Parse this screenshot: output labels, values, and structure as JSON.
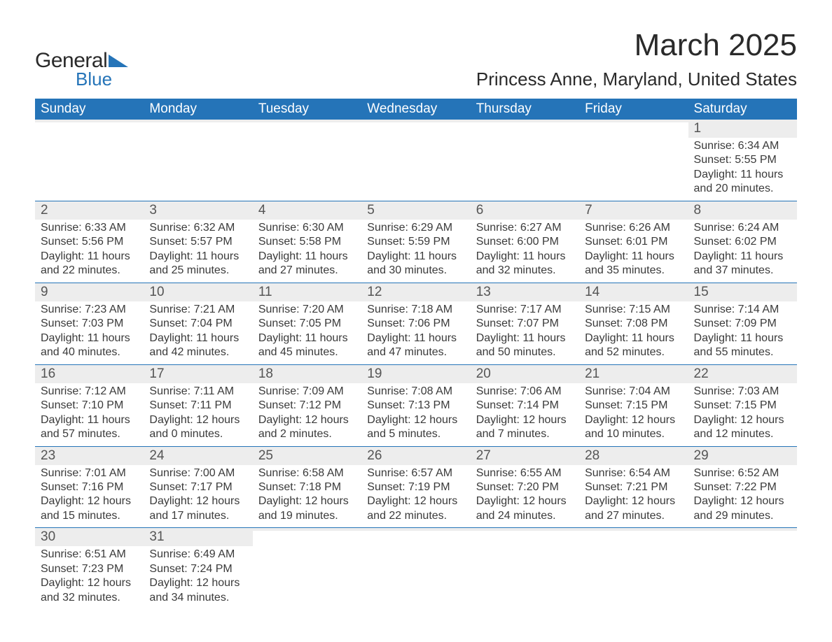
{
  "brand": {
    "general": "General",
    "blue": "Blue"
  },
  "title": {
    "month": "March 2025",
    "location": "Princess Anne, Maryland, United States"
  },
  "style": {
    "header_bg": "#2574b8",
    "header_fg": "#ffffff",
    "daynum_bg": "#ededed",
    "text_color": "#3a3a3a",
    "row_border": "#2574b8",
    "page_bg": "#ffffff",
    "month_fontsize": 44,
    "location_fontsize": 26,
    "dayhead_fontsize": 19,
    "body_fontsize": 16
  },
  "day_headers": [
    "Sunday",
    "Monday",
    "Tuesday",
    "Wednesday",
    "Thursday",
    "Friday",
    "Saturday"
  ],
  "weeks": [
    [
      {
        "n": "",
        "sr": "",
        "ss": "",
        "dl": ""
      },
      {
        "n": "",
        "sr": "",
        "ss": "",
        "dl": ""
      },
      {
        "n": "",
        "sr": "",
        "ss": "",
        "dl": ""
      },
      {
        "n": "",
        "sr": "",
        "ss": "",
        "dl": ""
      },
      {
        "n": "",
        "sr": "",
        "ss": "",
        "dl": ""
      },
      {
        "n": "",
        "sr": "",
        "ss": "",
        "dl": ""
      },
      {
        "n": "1",
        "sr": "Sunrise: 6:34 AM",
        "ss": "Sunset: 5:55 PM",
        "dl": "Daylight: 11 hours and 20 minutes."
      }
    ],
    [
      {
        "n": "2",
        "sr": "Sunrise: 6:33 AM",
        "ss": "Sunset: 5:56 PM",
        "dl": "Daylight: 11 hours and 22 minutes."
      },
      {
        "n": "3",
        "sr": "Sunrise: 6:32 AM",
        "ss": "Sunset: 5:57 PM",
        "dl": "Daylight: 11 hours and 25 minutes."
      },
      {
        "n": "4",
        "sr": "Sunrise: 6:30 AM",
        "ss": "Sunset: 5:58 PM",
        "dl": "Daylight: 11 hours and 27 minutes."
      },
      {
        "n": "5",
        "sr": "Sunrise: 6:29 AM",
        "ss": "Sunset: 5:59 PM",
        "dl": "Daylight: 11 hours and 30 minutes."
      },
      {
        "n": "6",
        "sr": "Sunrise: 6:27 AM",
        "ss": "Sunset: 6:00 PM",
        "dl": "Daylight: 11 hours and 32 minutes."
      },
      {
        "n": "7",
        "sr": "Sunrise: 6:26 AM",
        "ss": "Sunset: 6:01 PM",
        "dl": "Daylight: 11 hours and 35 minutes."
      },
      {
        "n": "8",
        "sr": "Sunrise: 6:24 AM",
        "ss": "Sunset: 6:02 PM",
        "dl": "Daylight: 11 hours and 37 minutes."
      }
    ],
    [
      {
        "n": "9",
        "sr": "Sunrise: 7:23 AM",
        "ss": "Sunset: 7:03 PM",
        "dl": "Daylight: 11 hours and 40 minutes."
      },
      {
        "n": "10",
        "sr": "Sunrise: 7:21 AM",
        "ss": "Sunset: 7:04 PM",
        "dl": "Daylight: 11 hours and 42 minutes."
      },
      {
        "n": "11",
        "sr": "Sunrise: 7:20 AM",
        "ss": "Sunset: 7:05 PM",
        "dl": "Daylight: 11 hours and 45 minutes."
      },
      {
        "n": "12",
        "sr": "Sunrise: 7:18 AM",
        "ss": "Sunset: 7:06 PM",
        "dl": "Daylight: 11 hours and 47 minutes."
      },
      {
        "n": "13",
        "sr": "Sunrise: 7:17 AM",
        "ss": "Sunset: 7:07 PM",
        "dl": "Daylight: 11 hours and 50 minutes."
      },
      {
        "n": "14",
        "sr": "Sunrise: 7:15 AM",
        "ss": "Sunset: 7:08 PM",
        "dl": "Daylight: 11 hours and 52 minutes."
      },
      {
        "n": "15",
        "sr": "Sunrise: 7:14 AM",
        "ss": "Sunset: 7:09 PM",
        "dl": "Daylight: 11 hours and 55 minutes."
      }
    ],
    [
      {
        "n": "16",
        "sr": "Sunrise: 7:12 AM",
        "ss": "Sunset: 7:10 PM",
        "dl": "Daylight: 11 hours and 57 minutes."
      },
      {
        "n": "17",
        "sr": "Sunrise: 7:11 AM",
        "ss": "Sunset: 7:11 PM",
        "dl": "Daylight: 12 hours and 0 minutes."
      },
      {
        "n": "18",
        "sr": "Sunrise: 7:09 AM",
        "ss": "Sunset: 7:12 PM",
        "dl": "Daylight: 12 hours and 2 minutes."
      },
      {
        "n": "19",
        "sr": "Sunrise: 7:08 AM",
        "ss": "Sunset: 7:13 PM",
        "dl": "Daylight: 12 hours and 5 minutes."
      },
      {
        "n": "20",
        "sr": "Sunrise: 7:06 AM",
        "ss": "Sunset: 7:14 PM",
        "dl": "Daylight: 12 hours and 7 minutes."
      },
      {
        "n": "21",
        "sr": "Sunrise: 7:04 AM",
        "ss": "Sunset: 7:15 PM",
        "dl": "Daylight: 12 hours and 10 minutes."
      },
      {
        "n": "22",
        "sr": "Sunrise: 7:03 AM",
        "ss": "Sunset: 7:15 PM",
        "dl": "Daylight: 12 hours and 12 minutes."
      }
    ],
    [
      {
        "n": "23",
        "sr": "Sunrise: 7:01 AM",
        "ss": "Sunset: 7:16 PM",
        "dl": "Daylight: 12 hours and 15 minutes."
      },
      {
        "n": "24",
        "sr": "Sunrise: 7:00 AM",
        "ss": "Sunset: 7:17 PM",
        "dl": "Daylight: 12 hours and 17 minutes."
      },
      {
        "n": "25",
        "sr": "Sunrise: 6:58 AM",
        "ss": "Sunset: 7:18 PM",
        "dl": "Daylight: 12 hours and 19 minutes."
      },
      {
        "n": "26",
        "sr": "Sunrise: 6:57 AM",
        "ss": "Sunset: 7:19 PM",
        "dl": "Daylight: 12 hours and 22 minutes."
      },
      {
        "n": "27",
        "sr": "Sunrise: 6:55 AM",
        "ss": "Sunset: 7:20 PM",
        "dl": "Daylight: 12 hours and 24 minutes."
      },
      {
        "n": "28",
        "sr": "Sunrise: 6:54 AM",
        "ss": "Sunset: 7:21 PM",
        "dl": "Daylight: 12 hours and 27 minutes."
      },
      {
        "n": "29",
        "sr": "Sunrise: 6:52 AM",
        "ss": "Sunset: 7:22 PM",
        "dl": "Daylight: 12 hours and 29 minutes."
      }
    ],
    [
      {
        "n": "30",
        "sr": "Sunrise: 6:51 AM",
        "ss": "Sunset: 7:23 PM",
        "dl": "Daylight: 12 hours and 32 minutes."
      },
      {
        "n": "31",
        "sr": "Sunrise: 6:49 AM",
        "ss": "Sunset: 7:24 PM",
        "dl": "Daylight: 12 hours and 34 minutes."
      },
      {
        "n": "",
        "sr": "",
        "ss": "",
        "dl": ""
      },
      {
        "n": "",
        "sr": "",
        "ss": "",
        "dl": ""
      },
      {
        "n": "",
        "sr": "",
        "ss": "",
        "dl": ""
      },
      {
        "n": "",
        "sr": "",
        "ss": "",
        "dl": ""
      },
      {
        "n": "",
        "sr": "",
        "ss": "",
        "dl": ""
      }
    ]
  ]
}
